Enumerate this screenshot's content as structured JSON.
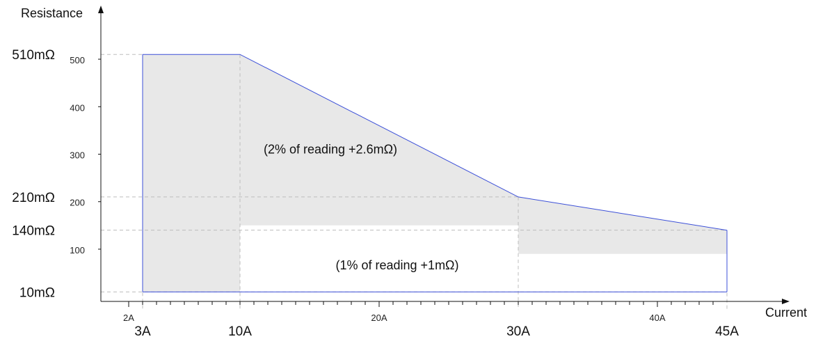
{
  "chart_data": {
    "type": "area",
    "title": "",
    "xlabel": "Current",
    "ylabel": "Resistance",
    "xlim": [
      0,
      49
    ],
    "ylim": [
      -10,
      610
    ],
    "x_ticks": [
      {
        "value": 2,
        "label": "2A"
      },
      {
        "value": 20,
        "label": "20A"
      },
      {
        "value": 40,
        "label": "40A"
      }
    ],
    "x_minor_ticks": [
      3,
      4,
      5,
      6,
      7,
      8,
      9,
      10,
      11,
      12,
      13,
      14,
      15,
      16,
      17,
      18,
      19,
      21,
      22,
      23,
      24,
      25,
      26,
      27,
      28,
      29,
      30,
      31,
      32,
      33,
      34,
      35,
      36,
      37,
      38,
      39,
      41,
      42,
      43,
      44
    ],
    "y_ticks": [
      {
        "value": 100,
        "label": "100"
      },
      {
        "value": 200,
        "label": "200"
      },
      {
        "value": 300,
        "label": "300"
      },
      {
        "value": 400,
        "label": "400"
      },
      {
        "value": 500,
        "label": "500"
      }
    ],
    "x_key_labels": [
      {
        "value": 3,
        "label": "3A"
      },
      {
        "value": 10,
        "label": "10A"
      },
      {
        "value": 30,
        "label": "30A"
      },
      {
        "value": 45,
        "label": "45A"
      }
    ],
    "y_key_labels": [
      {
        "value": 510,
        "label": "510mΩ"
      },
      {
        "value": 210,
        "label": "210mΩ"
      },
      {
        "value": 140,
        "label": "140mΩ"
      },
      {
        "value": 10,
        "label": "10mΩ"
      }
    ],
    "upper_boundary": [
      {
        "x": 3,
        "y": 510
      },
      {
        "x": 10,
        "y": 510
      },
      {
        "x": 30,
        "y": 210
      },
      {
        "x": 45,
        "y": 140
      }
    ],
    "lower_boundary": [
      {
        "x": 3,
        "y": 10
      },
      {
        "x": 45,
        "y": 10
      }
    ],
    "high_accuracy_region": [
      {
        "x": 10,
        "y": 10
      },
      {
        "x": 10,
        "y": 150
      },
      {
        "x": 30,
        "y": 150
      },
      {
        "x": 30,
        "y": 90
      },
      {
        "x": 45,
        "y": 90
      },
      {
        "x": 45,
        "y": 10
      }
    ],
    "annotations": [
      {
        "text": "(2% of reading +2.6mΩ)",
        "x": 16.5,
        "y": 310
      },
      {
        "text": "(1% of reading +1mΩ)",
        "x": 21.3,
        "y": 66
      }
    ],
    "colors": {
      "boundary_line": "#3b4fd8",
      "shaded_area": "#e8e8e8",
      "axis": "#111111",
      "guide_line": "#bdbdbd"
    },
    "grid": false,
    "legend": "none"
  }
}
